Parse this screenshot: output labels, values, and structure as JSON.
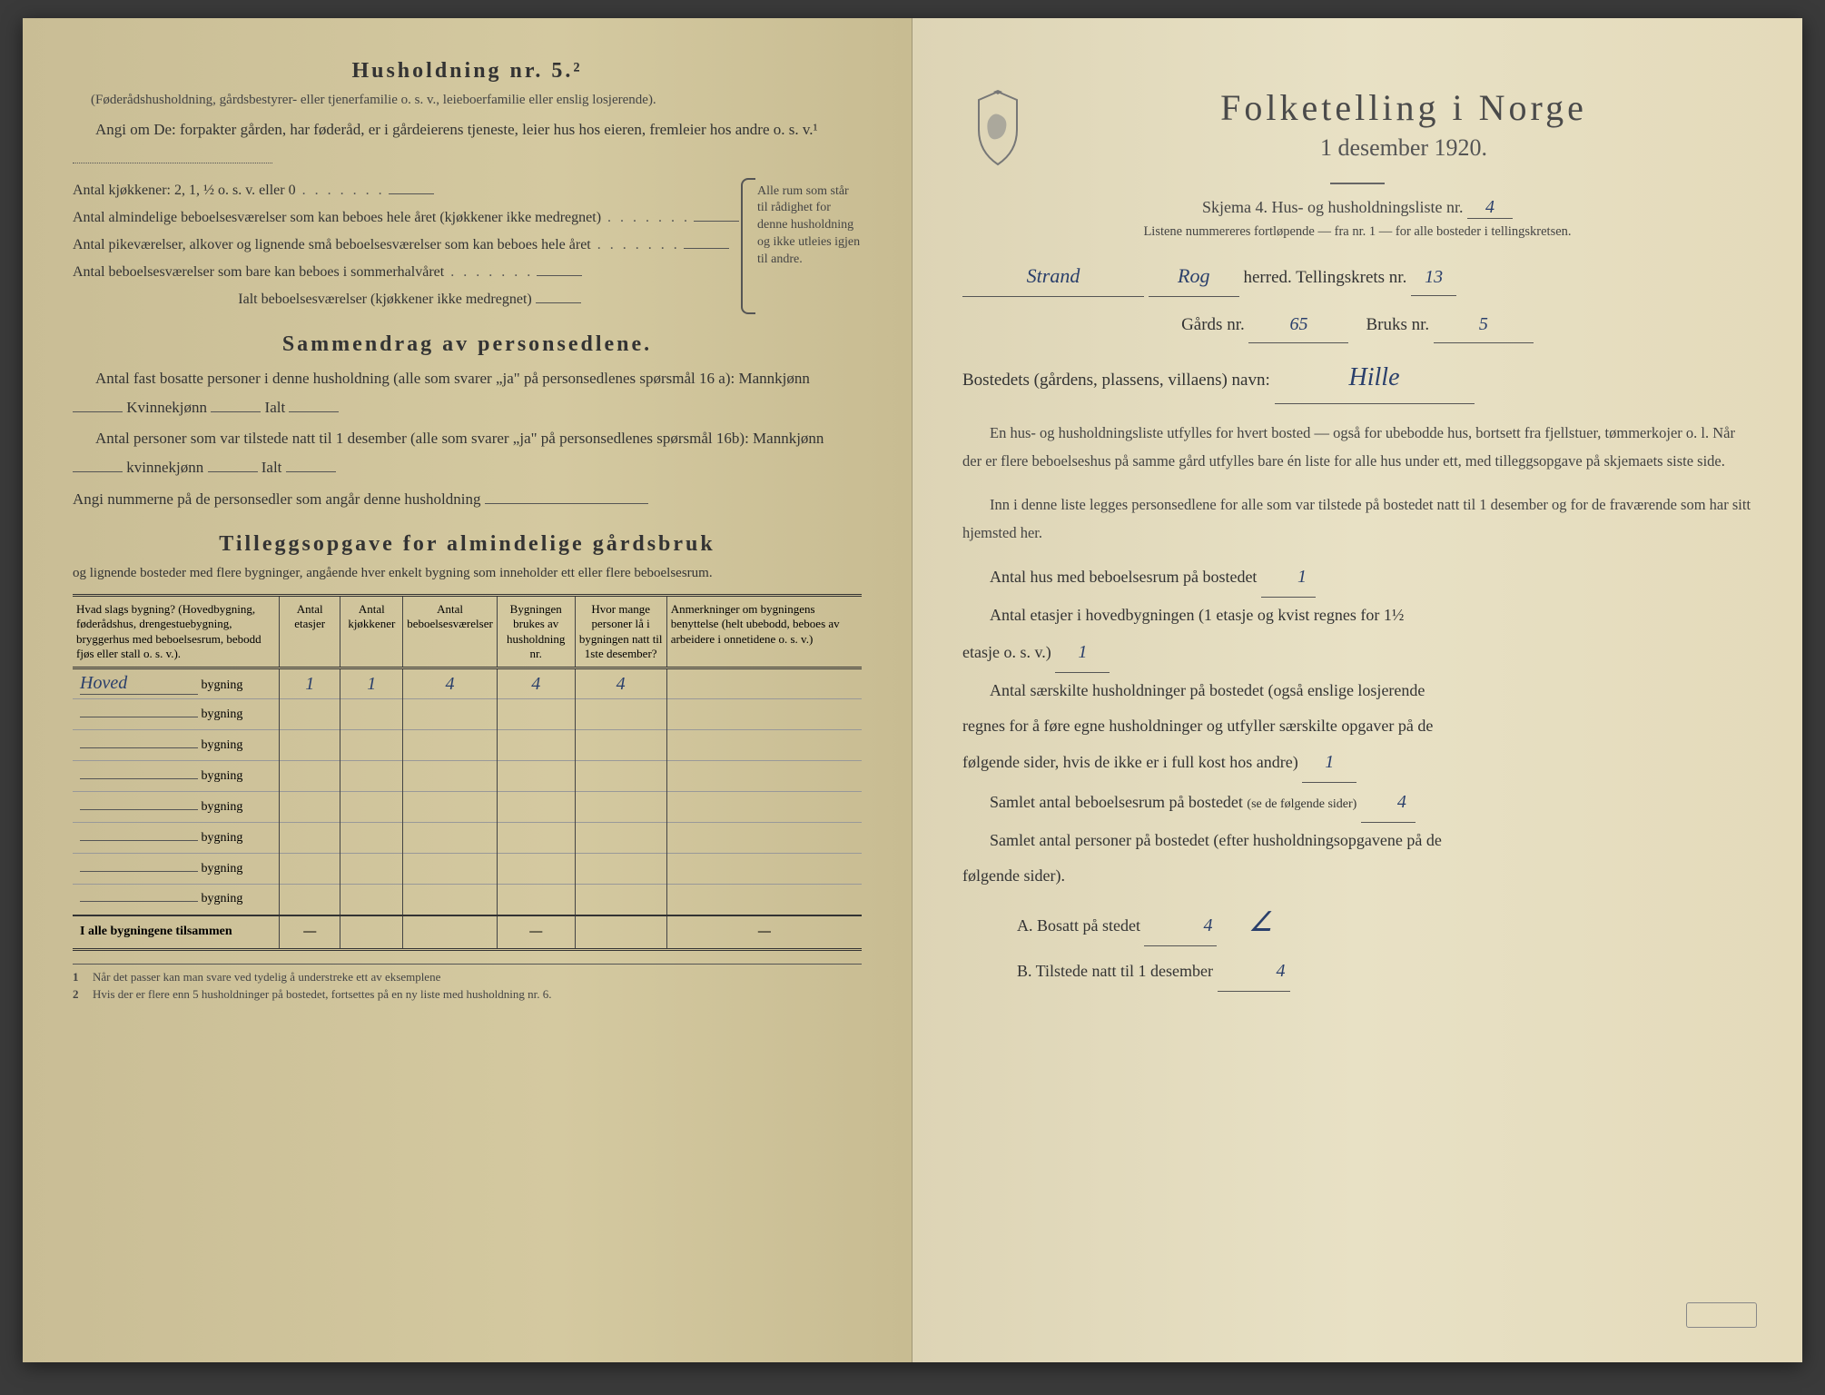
{
  "leftPage": {
    "title": "Husholdning nr. 5.²",
    "subtitle": "(Føderådshusholdning, gårdsbestyrer- eller tjenerfamilie o. s. v., leieboerfamilie eller enslig losjerende).",
    "angiOm": "Angi om De: forpakter gården, har føderåd, er i gårdeierens tjeneste, leier hus hos eieren, fremleier hos andre o. s. v.¹",
    "kitchenCount": "Antal kjøkkener: 2, 1, ½ o. s. v. eller 0",
    "kitchenLines": [
      "Antal almindelige beboelsesværelser som kan beboes hele året (kjøkkener ikke medregnet)",
      "Antal pikeværelser, alkover og lignende små beboelsesværelser som kan beboes hele året",
      "Antal beboelsesværelser som bare kan beboes i sommerhalvåret"
    ],
    "kitchenTotal": "Ialt beboelsesværelser (kjøkkener ikke medregnet)",
    "braceText": "Alle rum som står til rådighet for denne husholdning og ikke utleies igjen til andre.",
    "summarySection": {
      "title": "Sammendrag av personsedlene.",
      "line1": "Antal fast bosatte personer i denne husholdning (alle som svarer „ja\" på personsedlenes spørsmål 16 a): Mannkjønn",
      "kvinne": "Kvinnekjønn",
      "ialt": "Ialt",
      "line2": "Antal personer som var tilstede natt til 1 desember (alle som svarer „ja\" på personsedlenes spørsmål 16b): Mannkjønn",
      "kvinne2": "kvinnekjønn",
      "ialt2": "Ialt",
      "line3": "Angi nummerne på de personsedler som angår denne husholdning"
    },
    "tilleggSection": {
      "title": "Tilleggsopgave for almindelige gårdsbruk",
      "subtitle": "og lignende bosteder med flere bygninger, angående hver enkelt bygning som inneholder ett eller flere beboelsesrum."
    },
    "table": {
      "headers": [
        "Hvad slags bygning?\n(Hovedbygning, føderådshus, drengestuebygning, bryggerhus med beboelsesrum, bebodd fjøs eller stall o. s. v.).",
        "Antal etasjer",
        "Antal kjøkkener",
        "Antal beboelsesværelser",
        "Bygningen brukes av husholdning nr.",
        "Hvor mange personer lå i bygningen natt til 1ste desember?",
        "Anmerkninger om bygningens benyttelse (helt ubebodd, beboes av arbeidere i onnetidene o. s. v.)"
      ],
      "rowLabel": "bygning",
      "firstRowPrefix": "Hoved",
      "rows": [
        {
          "prefix": "Hoved",
          "etasjer": "1",
          "kjokkener": "1",
          "vaerelser": "4",
          "hushold": "4",
          "personer": "4",
          "anm": ""
        },
        {
          "prefix": "",
          "etasjer": "",
          "kjokkener": "",
          "vaerelser": "",
          "hushold": "",
          "personer": "",
          "anm": ""
        },
        {
          "prefix": "",
          "etasjer": "",
          "kjokkener": "",
          "vaerelser": "",
          "hushold": "",
          "personer": "",
          "anm": ""
        },
        {
          "prefix": "",
          "etasjer": "",
          "kjokkener": "",
          "vaerelser": "",
          "hushold": "",
          "personer": "",
          "anm": ""
        },
        {
          "prefix": "",
          "etasjer": "",
          "kjokkener": "",
          "vaerelser": "",
          "hushold": "",
          "personer": "",
          "anm": ""
        },
        {
          "prefix": "",
          "etasjer": "",
          "kjokkener": "",
          "vaerelser": "",
          "hushold": "",
          "personer": "",
          "anm": ""
        },
        {
          "prefix": "",
          "etasjer": "",
          "kjokkener": "",
          "vaerelser": "",
          "hushold": "",
          "personer": "",
          "anm": ""
        },
        {
          "prefix": "",
          "etasjer": "",
          "kjokkener": "",
          "vaerelser": "",
          "hushold": "",
          "personer": "",
          "anm": ""
        }
      ],
      "footerLabel": "I alle bygningene tilsammen",
      "dash": "—"
    },
    "footnotes": [
      "Når det passer kan man svare ved tydelig å understreke ett av eksemplene",
      "Hvis der er flere enn 5 husholdninger på bostedet, fortsettes på en ny liste med husholdning nr. 6."
    ]
  },
  "rightPage": {
    "title": "Folketelling i Norge",
    "date": "1 desember 1920.",
    "skjema": "Skjema 4.   Hus- og husholdningsliste nr.",
    "skjemaNr": "4",
    "listNote": "Listene nummereres fortløpende — fra nr. 1 — for alle bosteder i tellingskretsen.",
    "herredLabel": "herred.   Tellingskrets nr.",
    "herredValue": "Strand",
    "fylkeValue": "Rog",
    "tellingskretsNr": "13",
    "gardLabel": "Gårds nr.",
    "gardNr": "65",
    "bruksLabel": "Bruks nr.",
    "bruksNr": "5",
    "bostedLabel": "Bostedets (gårdens, plassens, villaens) navn:",
    "bostedValue": "Hille",
    "explain1": "En hus- og husholdningsliste utfylles for hvert bosted — også for ubebodde hus, bortsett fra fjellstuer, tømmerkojer o. l. Når der er flere beboelseshus på samme gård utfylles bare én liste for alle hus under ett, med tilleggsopgave på skjemaets siste side.",
    "explain2": "Inn i denne liste legges personsedlene for alle som var tilstede på bostedet natt til 1 desember og for de fraværende som har sitt hjemsted her.",
    "q1": "Antal hus med beboelsesrum på bostedet",
    "q1v": "1",
    "q2a": "Antal etasjer i hovedbygningen (1 etasje og kvist regnes for 1½",
    "q2b": "etasje o. s. v.)",
    "q2v": "1",
    "q3a": "Antal særskilte husholdninger på bostedet (også enslige losjerende",
    "q3b": "regnes for å føre egne husholdninger og utfyller særskilte opgaver på de",
    "q3c": "følgende sider, hvis de ikke er i full kost hos andre)",
    "q3v": "1",
    "q4": "Samlet antal beboelsesrum på bostedet",
    "q4note": "(se de følgende sider)",
    "q4v": "4",
    "q5a": "Samlet antal personer på bostedet (efter husholdningsopgavene på de",
    "q5b": "følgende sider).",
    "qA": "A.  Bosatt på stedet",
    "qAv": "4",
    "qB": "B.  Tilstede natt til 1 desember",
    "qBv": "4",
    "stampText": ""
  },
  "colors": {
    "ink": "#333333",
    "handwrite": "#2a3f6b",
    "leftBg": "#d4c9a0",
    "rightBg": "#e8e1c5"
  }
}
